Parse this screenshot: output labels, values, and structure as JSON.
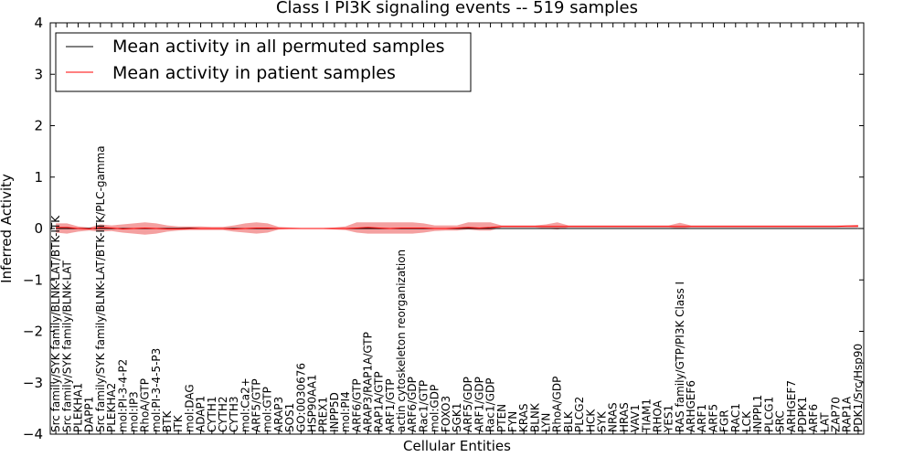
{
  "chart_data": {
    "type": "line",
    "title": "Class I PI3K signaling events -- 519 samples",
    "xlabel": "Cellular Entities",
    "ylabel": "Inferred Activity",
    "ylim": [
      -4,
      4
    ],
    "yticks": [
      -4,
      -3,
      -2,
      -1,
      0,
      1,
      2,
      3,
      4
    ],
    "ytick_labels": [
      "−4",
      "−3",
      "−2",
      "−1",
      "0",
      "1",
      "2",
      "3",
      "4"
    ],
    "legend_position": "top-left",
    "categories": [
      "Src family/SYK family/BLNK-LAT/BTK-ITK",
      "Src family/SYK family/BLNK-LAT",
      "PLEKHA1",
      "DAPP1",
      "Src family/SYK family/BLNK-LAT/BTK-ITK/PLC-gamma",
      "PLEKHA2",
      "mol:PI-3-4-P2",
      "mol:IP3",
      "RhoA/GTP",
      "mol:PI-3-4-5-P3",
      "BTK",
      "ITK",
      "mol:DAG",
      "ADAP1",
      "CYTH1",
      "CYTH2",
      "CYTH3",
      "mol:Ca2+",
      "ARF5/GTP",
      "mol:GTP",
      "ARAP3",
      "SOS1",
      "GO:0030676",
      "HSP90AA1",
      "PREX1",
      "INPP5D",
      "mol:PI4",
      "ARF6/GTP",
      "ARAP3/RAP1A/GTP",
      "RAP1A/GTP",
      "ARF1/GTP",
      "actin cytoskeleton reorganization",
      "ARF6/GDP",
      "Rac1/GTP",
      "mol:GDP",
      "FOXO3",
      "SGK1",
      "ARF5/GDP",
      "ARF1/GDP",
      "Rac1/GDP",
      "PTEN",
      "FYN",
      "KRAS",
      "BLNK",
      "LYN",
      "RhoA/GDP",
      "BLK",
      "PLCG2",
      "HCK",
      "SYK",
      "NRAS",
      "HRAS",
      "VAV1",
      "TIAM1",
      "RHOA",
      "YES1",
      "RAS family/GTP/PI3K Class I",
      "ARHGEF6",
      "ARF1",
      "ARF5",
      "FGR",
      "RAC1",
      "LCK",
      "INPPL1",
      "PLCG1",
      "SRC",
      "ARHGEF7",
      "PDPK1",
      "ARF6",
      "LAT",
      "ZAP70",
      "RAP1A",
      "PDK1/Src/Hsp90"
    ],
    "series": [
      {
        "name": "Mean activity in all permuted samples",
        "color": "#000000",
        "values": [
          0.0,
          0.0,
          0.0,
          0.0,
          0.0,
          0.0,
          0.0,
          0.0,
          0.0,
          0.0,
          0.0,
          0.0,
          0.01,
          0.0,
          0.0,
          0.0,
          0.0,
          0.0,
          0.0,
          0.0,
          0.0,
          0.0,
          0.0,
          0.0,
          0.0,
          0.0,
          0.0,
          0.0,
          0.0,
          0.0,
          0.0,
          0.0,
          0.0,
          0.0,
          0.0,
          0.0,
          0.0,
          0.0,
          0.0,
          0.0,
          0.0,
          0.0,
          0.0,
          0.0,
          0.0,
          0.0,
          0.0,
          0.0,
          0.0,
          0.0,
          0.0,
          0.0,
          0.0,
          0.0,
          0.0,
          0.0,
          0.0,
          0.0,
          0.0,
          0.0,
          0.0,
          0.0,
          0.0,
          0.0,
          0.0,
          0.0,
          0.0,
          0.0,
          0.0,
          0.0,
          0.0,
          0.0,
          0.0
        ]
      },
      {
        "name": "Mean activity in patient samples",
        "color": "#ff0000",
        "fill": "#f08080",
        "values": [
          0.02,
          0.02,
          0.0,
          -0.01,
          0.02,
          0.01,
          -0.01,
          0.0,
          0.01,
          0.0,
          -0.01,
          -0.01,
          0.0,
          0.0,
          0.0,
          0.0,
          -0.01,
          0.0,
          0.01,
          0.01,
          0.0,
          0.0,
          0.0,
          0.0,
          0.0,
          0.0,
          0.0,
          0.01,
          0.02,
          0.01,
          0.0,
          0.01,
          0.01,
          0.01,
          0.0,
          0.0,
          0.01,
          0.02,
          0.01,
          0.02,
          0.04,
          0.04,
          0.04,
          0.04,
          0.04,
          0.04,
          0.04,
          0.04,
          0.04,
          0.04,
          0.04,
          0.04,
          0.04,
          0.04,
          0.04,
          0.04,
          0.04,
          0.04,
          0.04,
          0.04,
          0.04,
          0.04,
          0.04,
          0.04,
          0.04,
          0.04,
          0.04,
          0.04,
          0.04,
          0.04,
          0.04,
          0.05,
          0.05
        ],
        "lower": [
          -0.08,
          -0.1,
          -0.06,
          -0.04,
          -0.06,
          -0.05,
          -0.08,
          -0.1,
          -0.12,
          -0.1,
          -0.06,
          -0.04,
          -0.03,
          -0.03,
          -0.03,
          -0.03,
          -0.06,
          -0.08,
          -0.1,
          -0.08,
          -0.02,
          -0.01,
          -0.01,
          -0.01,
          -0.01,
          -0.02,
          -0.03,
          -0.08,
          -0.1,
          -0.1,
          -0.1,
          -0.1,
          -0.1,
          -0.08,
          -0.05,
          -0.04,
          -0.04,
          -0.02,
          -0.04,
          -0.04,
          0.02,
          0.02,
          0.02,
          0.02,
          0.0,
          -0.02,
          0.02,
          0.02,
          0.02,
          0.02,
          0.02,
          0.02,
          0.02,
          0.02,
          0.02,
          0.02,
          0.0,
          0.02,
          0.02,
          0.02,
          0.02,
          0.02,
          0.02,
          0.02,
          0.02,
          0.02,
          0.02,
          0.02,
          0.02,
          0.02,
          0.02,
          0.02,
          0.02
        ],
        "upper": [
          0.1,
          0.1,
          0.04,
          0.02,
          0.08,
          0.06,
          0.08,
          0.1,
          0.12,
          0.1,
          0.06,
          0.04,
          0.04,
          0.04,
          0.03,
          0.03,
          0.06,
          0.1,
          0.12,
          0.1,
          0.03,
          0.02,
          0.01,
          0.01,
          0.01,
          0.02,
          0.04,
          0.12,
          0.12,
          0.12,
          0.12,
          0.12,
          0.12,
          0.1,
          0.06,
          0.06,
          0.06,
          0.12,
          0.12,
          0.12,
          0.06,
          0.06,
          0.06,
          0.06,
          0.08,
          0.12,
          0.06,
          0.06,
          0.06,
          0.06,
          0.06,
          0.06,
          0.06,
          0.06,
          0.06,
          0.06,
          0.11,
          0.06,
          0.06,
          0.06,
          0.06,
          0.06,
          0.06,
          0.06,
          0.06,
          0.06,
          0.06,
          0.06,
          0.06,
          0.06,
          0.06,
          0.06,
          0.07
        ]
      }
    ],
    "reference_line": {
      "y": 0,
      "style": "dotted",
      "color": "#000000"
    }
  }
}
